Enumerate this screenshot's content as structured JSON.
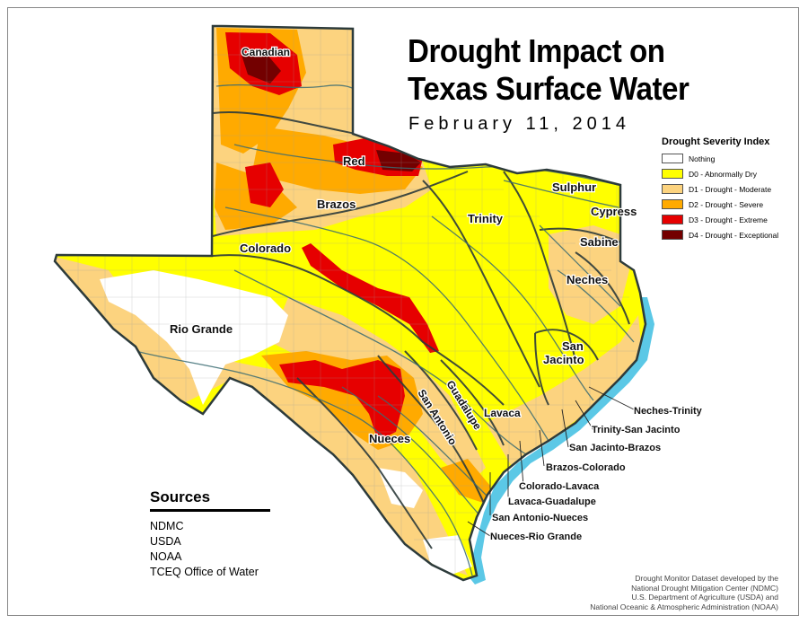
{
  "title": {
    "line1": "Drought Impact on",
    "line2": "Texas Surface Water",
    "date": "February 11, 2014"
  },
  "legend": {
    "title": "Drought Severity Index",
    "items": [
      {
        "label": "Nothing",
        "color": "#ffffff"
      },
      {
        "label": "D0 - Abnormally Dry",
        "color": "#ffff00"
      },
      {
        "label": "D1 - Drought - Moderate",
        "color": "#fcd37f"
      },
      {
        "label": "D2 - Drought - Severe",
        "color": "#ffaa00"
      },
      {
        "label": "D3 - Drought - Extreme",
        "color": "#e60000"
      },
      {
        "label": "D4 - Drought - Exceptional",
        "color": "#730000"
      }
    ]
  },
  "basins": {
    "canadian": "Canadian",
    "red": "Red",
    "brazos": "Brazos",
    "colorado": "Colorado",
    "rio_grande": "Rio Grande",
    "trinity": "Trinity",
    "sulphur": "Sulphur",
    "cypress": "Cypress",
    "sabine": "Sabine",
    "neches": "Neches",
    "san_jacinto_1": "San",
    "san_jacinto_2": "Jacinto",
    "guadalupe": "Guadalupe",
    "san_antonio": "San Antonio",
    "lavaca": "Lavaca",
    "nueces": "Nueces",
    "neches_trinity": "Neches-Trinity",
    "trinity_san_jacinto": "Trinity-San Jacinto",
    "san_jacinto_brazos": "San Jacinto-Brazos",
    "brazos_colorado": "Brazos-Colorado",
    "colorado_lavaca": "Colorado-Lavaca",
    "lavaca_guadalupe": "Lavaca-Guadalupe",
    "san_antonio_nueces": "San Antonio-Nueces",
    "nueces_rio_grande": "Nueces-Rio Grande"
  },
  "sources": {
    "title": "Sources",
    "items": [
      "NDMC",
      "USDA",
      "NOAA",
      "TCEQ Office of Water"
    ]
  },
  "credit": {
    "lines": [
      "Drought Monitor Dataset developed by the",
      "National Drought Mitigation Center (NDMC)",
      "U.S. Department of Agriculture (USDA) and",
      "National Oceanic & Atmospheric Administration (NOAA)"
    ]
  },
  "colors": {
    "gulf": "#5bc8e6",
    "river": "#3a6b72",
    "outline": "#2d3b3b"
  }
}
